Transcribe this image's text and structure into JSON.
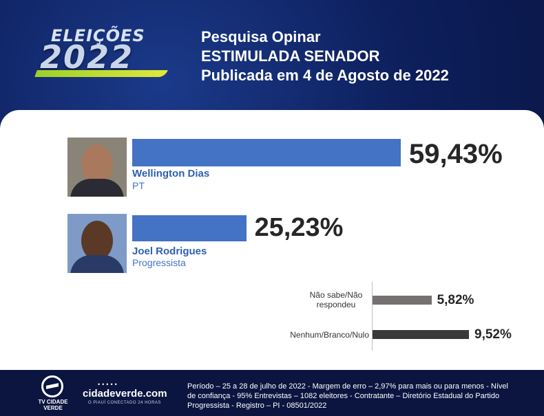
{
  "logo": {
    "top": "ELEIÇÕES",
    "year": "2022"
  },
  "header": {
    "line1": "Pesquisa Opinar",
    "line2": "ESTIMULADA SENADOR",
    "line3": "Publicada em 4 de Agosto de 2022"
  },
  "chart_data": {
    "type": "bar",
    "orientation": "horizontal",
    "candidates": [
      {
        "name": "Wellington Dias",
        "party": "PT",
        "value": 59.43,
        "label": "59,43%",
        "color": "#4472c4"
      },
      {
        "name": "Joel Rodrigues",
        "party": "Progressista",
        "value": 25.23,
        "label": "25,23%",
        "color": "#4472c4"
      }
    ],
    "others": [
      {
        "category": "Não sabe/Não respondeu",
        "value": 5.82,
        "label": "5,82%",
        "color": "#767171"
      },
      {
        "category": "Nenhum/Branco/Nulo",
        "value": 9.52,
        "label": "9,52%",
        "color": "#3a3838"
      }
    ]
  },
  "footer": {
    "tv_logo_text": "TV CIDADE VERDE",
    "site_name": "cidadeverde.com",
    "site_tagline": "O PIAUÍ CONECTADO 24 HORAS",
    "note": "Período – 25 a 28 de julho de 2022 - Margem de erro – 2,97% para mais ou para menos - Nível de confiança - 95% Entrevistas – 1082 eleitores - Contratante – Diretório Estadual do Partido Progressista - Registro – PI - 08501/2022"
  }
}
